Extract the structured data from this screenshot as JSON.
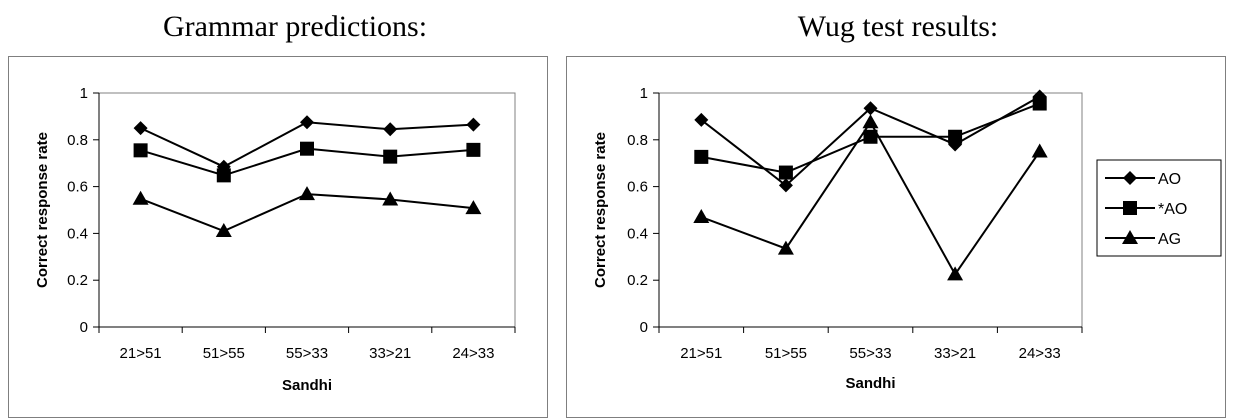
{
  "titles": {
    "left": "Grammar predictions:",
    "right": "Wug test results:"
  },
  "chart_data": [
    {
      "type": "line",
      "title": "Grammar predictions:",
      "xlabel": "Sandhi",
      "ylabel": "Correct response rate",
      "categories": [
        "21>51",
        "51>55",
        "55>33",
        "33>21",
        "24>33"
      ],
      "ylim": [
        0,
        1
      ],
      "yticks": [
        "0",
        "0.2",
        "0.4",
        "0.6",
        "0.8",
        "1"
      ],
      "grid": false,
      "legend": "none",
      "series": [
        {
          "values": [
            0.85,
            0.685,
            0.875,
            0.845,
            0.865
          ],
          "marker": "diamond"
        },
        {
          "values": [
            0.755,
            0.648,
            0.762,
            0.728,
            0.757
          ],
          "marker": "square"
        },
        {
          "values": [
            0.548,
            0.41,
            0.568,
            0.545,
            0.508
          ],
          "marker": "triangle"
        }
      ]
    },
    {
      "type": "line",
      "title": "Wug test results:",
      "xlabel": "Sandhi",
      "ylabel": "Correct response rate",
      "categories": [
        "21>51",
        "51>55",
        "55>33",
        "33>21",
        "24>33"
      ],
      "ylim": [
        0,
        1
      ],
      "yticks": [
        "0",
        "0.2",
        "0.4",
        "0.6",
        "0.8",
        "1"
      ],
      "grid": false,
      "legend": "right",
      "series": [
        {
          "name": "AO",
          "values": [
            0.885,
            0.605,
            0.935,
            0.78,
            0.985
          ],
          "marker": "diamond"
        },
        {
          "name": "*AO",
          "values": [
            0.727,
            0.66,
            0.813,
            0.813,
            0.955
          ],
          "marker": "square"
        },
        {
          "name": "AG",
          "values": [
            0.47,
            0.335,
            0.875,
            0.225,
            0.75
          ],
          "marker": "triangle"
        }
      ]
    }
  ]
}
